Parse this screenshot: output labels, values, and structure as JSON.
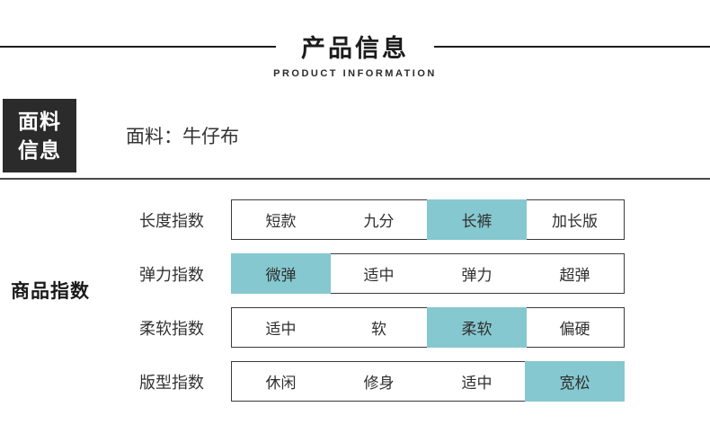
{
  "header": {
    "title": "产品信息",
    "subtitle": "PRODUCT INFORMATION"
  },
  "fabric_section": {
    "badge_line1": "面料",
    "badge_line2": "信息",
    "fabric_value": "面料：牛仔布"
  },
  "index_section": {
    "title": "商品指数",
    "rows": [
      {
        "label": "长度指数",
        "options": [
          "短款",
          "九分",
          "长裤",
          "加长版"
        ],
        "selected_index": 2
      },
      {
        "label": "弹力指数",
        "options": [
          "微弹",
          "适中",
          "弹力",
          "超弹"
        ],
        "selected_index": 0
      },
      {
        "label": "柔软指数",
        "options": [
          "适中",
          "软",
          "柔软",
          "偏硬"
        ],
        "selected_index": 2
      },
      {
        "label": "版型指数",
        "options": [
          "休闲",
          "修身",
          "适中",
          "宽松"
        ],
        "selected_index": 3
      }
    ]
  },
  "colors": {
    "highlight": "#85c8cf",
    "badge_background": "#2b2b2b",
    "text": "#333333",
    "line": "#1c1c1c"
  }
}
